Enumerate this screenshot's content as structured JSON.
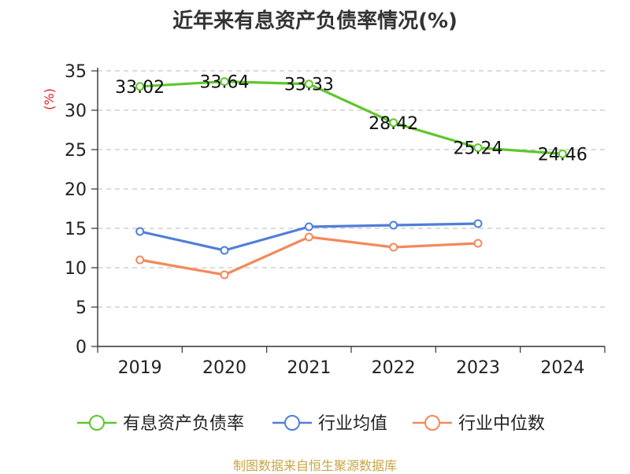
{
  "chart_data": {
    "type": "line",
    "title": "近年来有息资产负债率情况(%)",
    "ylabel": "(%)",
    "xlabel": "",
    "categories": [
      "2019",
      "2020",
      "2021",
      "2022",
      "2023",
      "2024"
    ],
    "ylim": [
      0,
      35
    ],
    "yticks": [
      0,
      5,
      10,
      15,
      20,
      25,
      30,
      35
    ],
    "grid": "horizontal-dashed",
    "legend": "bottom",
    "series": [
      {
        "name": "有息资产负债率",
        "color": "#5ec72a",
        "values": [
          33.02,
          33.64,
          33.33,
          28.42,
          25.24,
          24.46
        ],
        "labels": [
          "33.02",
          "33.64",
          "33.33",
          "28.42",
          "25.24",
          "24.46"
        ]
      },
      {
        "name": "行业均值",
        "color": "#4f7fd9",
        "values": [
          14.6,
          12.2,
          15.2,
          15.4,
          15.6,
          null
        ]
      },
      {
        "name": "行业中位数",
        "color": "#f4895a",
        "values": [
          11.0,
          9.1,
          13.9,
          12.6,
          13.1,
          null
        ]
      }
    ]
  },
  "footer": {
    "source": "制图数据来自恒生聚源数据库"
  }
}
